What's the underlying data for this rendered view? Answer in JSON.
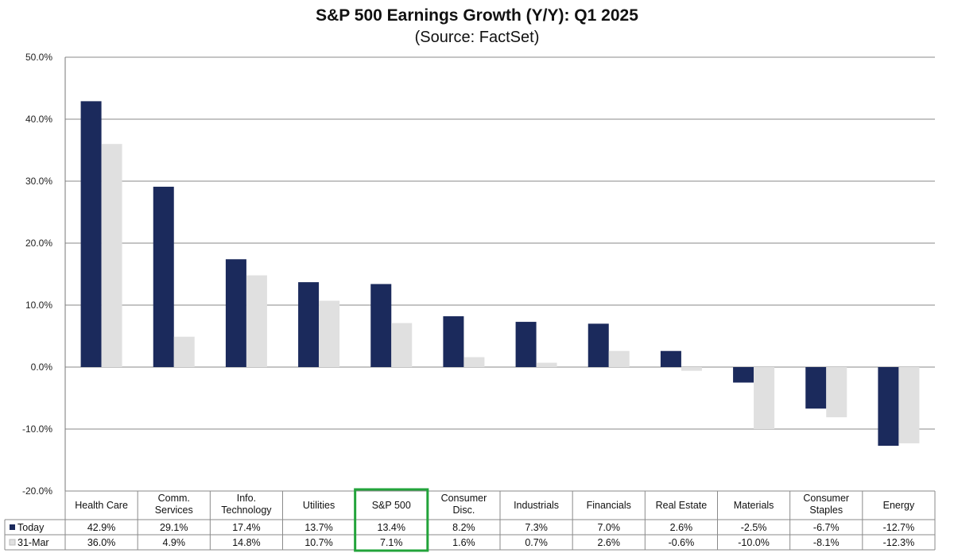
{
  "chart_data": {
    "type": "bar",
    "title": "S&P 500 Earnings Growth (Y/Y): Q1 2025",
    "subtitle": "(Source: FactSet)",
    "categories": [
      [
        "Health Care"
      ],
      [
        "Comm.",
        "Services"
      ],
      [
        "Info.",
        "Technology"
      ],
      [
        "Utilities"
      ],
      [
        "S&P 500"
      ],
      [
        "Consumer",
        "Disc."
      ],
      [
        "Industrials"
      ],
      [
        "Financials"
      ],
      [
        "Real Estate"
      ],
      [
        "Materials"
      ],
      [
        "Consumer",
        "Staples"
      ],
      [
        "Energy"
      ]
    ],
    "series": [
      {
        "name": "Today",
        "color": "#1b2a5c",
        "values": [
          42.9,
          29.1,
          17.4,
          13.7,
          13.4,
          8.2,
          7.3,
          7.0,
          2.6,
          -2.5,
          -6.7,
          -12.7
        ],
        "labels": [
          "42.9%",
          "29.1%",
          "17.4%",
          "13.7%",
          "13.4%",
          "8.2%",
          "7.3%",
          "7.0%",
          "2.6%",
          "-2.5%",
          "-6.7%",
          "-12.7%"
        ]
      },
      {
        "name": "31-Mar",
        "color": "#e0e0e0",
        "values": [
          36.0,
          4.9,
          14.8,
          10.7,
          7.1,
          1.6,
          0.7,
          2.6,
          -0.6,
          -10.0,
          -8.1,
          -12.3
        ],
        "labels": [
          "36.0%",
          "4.9%",
          "14.8%",
          "10.7%",
          "7.1%",
          "1.6%",
          "0.7%",
          "2.6%",
          "-0.6%",
          "-10.0%",
          "-8.1%",
          "-12.3%"
        ]
      }
    ],
    "ylim": [
      -20,
      50
    ],
    "yticks": [
      -20,
      -10,
      0,
      10,
      20,
      30,
      40,
      50
    ],
    "ytick_labels": [
      "-20.0%",
      "-10.0%",
      "0.0%",
      "10.0%",
      "20.0%",
      "30.0%",
      "40.0%",
      "50.0%"
    ],
    "grid": true,
    "legend": "data-table-left",
    "highlight_category": "S&P 500",
    "highlight_color": "#22a33a"
  }
}
